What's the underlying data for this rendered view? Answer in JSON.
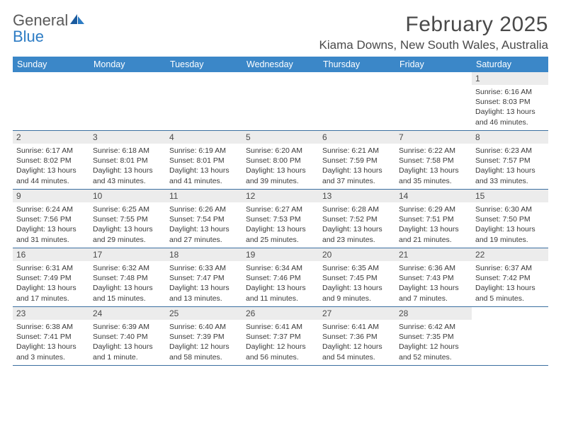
{
  "logo": {
    "text_gray": "General",
    "text_blue": "Blue"
  },
  "title": "February 2025",
  "location": "Kiama Downs, New South Wales, Australia",
  "colors": {
    "header_bg": "#3b87c8",
    "header_text": "#ffffff",
    "daynum_bg": "#ececec",
    "rule": "#3b6fa0",
    "body_text": "#3a3a3a",
    "title_text": "#4a4a4a"
  },
  "weekdays": [
    "Sunday",
    "Monday",
    "Tuesday",
    "Wednesday",
    "Thursday",
    "Friday",
    "Saturday"
  ],
  "weeks": [
    [
      null,
      null,
      null,
      null,
      null,
      null,
      {
        "n": "1",
        "sunrise": "6:16 AM",
        "sunset": "8:03 PM",
        "dl1": "Daylight: 13 hours",
        "dl2": "and 46 minutes."
      }
    ],
    [
      {
        "n": "2",
        "sunrise": "6:17 AM",
        "sunset": "8:02 PM",
        "dl1": "Daylight: 13 hours",
        "dl2": "and 44 minutes."
      },
      {
        "n": "3",
        "sunrise": "6:18 AM",
        "sunset": "8:01 PM",
        "dl1": "Daylight: 13 hours",
        "dl2": "and 43 minutes."
      },
      {
        "n": "4",
        "sunrise": "6:19 AM",
        "sunset": "8:01 PM",
        "dl1": "Daylight: 13 hours",
        "dl2": "and 41 minutes."
      },
      {
        "n": "5",
        "sunrise": "6:20 AM",
        "sunset": "8:00 PM",
        "dl1": "Daylight: 13 hours",
        "dl2": "and 39 minutes."
      },
      {
        "n": "6",
        "sunrise": "6:21 AM",
        "sunset": "7:59 PM",
        "dl1": "Daylight: 13 hours",
        "dl2": "and 37 minutes."
      },
      {
        "n": "7",
        "sunrise": "6:22 AM",
        "sunset": "7:58 PM",
        "dl1": "Daylight: 13 hours",
        "dl2": "and 35 minutes."
      },
      {
        "n": "8",
        "sunrise": "6:23 AM",
        "sunset": "7:57 PM",
        "dl1": "Daylight: 13 hours",
        "dl2": "and 33 minutes."
      }
    ],
    [
      {
        "n": "9",
        "sunrise": "6:24 AM",
        "sunset": "7:56 PM",
        "dl1": "Daylight: 13 hours",
        "dl2": "and 31 minutes."
      },
      {
        "n": "10",
        "sunrise": "6:25 AM",
        "sunset": "7:55 PM",
        "dl1": "Daylight: 13 hours",
        "dl2": "and 29 minutes."
      },
      {
        "n": "11",
        "sunrise": "6:26 AM",
        "sunset": "7:54 PM",
        "dl1": "Daylight: 13 hours",
        "dl2": "and 27 minutes."
      },
      {
        "n": "12",
        "sunrise": "6:27 AM",
        "sunset": "7:53 PM",
        "dl1": "Daylight: 13 hours",
        "dl2": "and 25 minutes."
      },
      {
        "n": "13",
        "sunrise": "6:28 AM",
        "sunset": "7:52 PM",
        "dl1": "Daylight: 13 hours",
        "dl2": "and 23 minutes."
      },
      {
        "n": "14",
        "sunrise": "6:29 AM",
        "sunset": "7:51 PM",
        "dl1": "Daylight: 13 hours",
        "dl2": "and 21 minutes."
      },
      {
        "n": "15",
        "sunrise": "6:30 AM",
        "sunset": "7:50 PM",
        "dl1": "Daylight: 13 hours",
        "dl2": "and 19 minutes."
      }
    ],
    [
      {
        "n": "16",
        "sunrise": "6:31 AM",
        "sunset": "7:49 PM",
        "dl1": "Daylight: 13 hours",
        "dl2": "and 17 minutes."
      },
      {
        "n": "17",
        "sunrise": "6:32 AM",
        "sunset": "7:48 PM",
        "dl1": "Daylight: 13 hours",
        "dl2": "and 15 minutes."
      },
      {
        "n": "18",
        "sunrise": "6:33 AM",
        "sunset": "7:47 PM",
        "dl1": "Daylight: 13 hours",
        "dl2": "and 13 minutes."
      },
      {
        "n": "19",
        "sunrise": "6:34 AM",
        "sunset": "7:46 PM",
        "dl1": "Daylight: 13 hours",
        "dl2": "and 11 minutes."
      },
      {
        "n": "20",
        "sunrise": "6:35 AM",
        "sunset": "7:45 PM",
        "dl1": "Daylight: 13 hours",
        "dl2": "and 9 minutes."
      },
      {
        "n": "21",
        "sunrise": "6:36 AM",
        "sunset": "7:43 PM",
        "dl1": "Daylight: 13 hours",
        "dl2": "and 7 minutes."
      },
      {
        "n": "22",
        "sunrise": "6:37 AM",
        "sunset": "7:42 PM",
        "dl1": "Daylight: 13 hours",
        "dl2": "and 5 minutes."
      }
    ],
    [
      {
        "n": "23",
        "sunrise": "6:38 AM",
        "sunset": "7:41 PM",
        "dl1": "Daylight: 13 hours",
        "dl2": "and 3 minutes."
      },
      {
        "n": "24",
        "sunrise": "6:39 AM",
        "sunset": "7:40 PM",
        "dl1": "Daylight: 13 hours",
        "dl2": "and 1 minute."
      },
      {
        "n": "25",
        "sunrise": "6:40 AM",
        "sunset": "7:39 PM",
        "dl1": "Daylight: 12 hours",
        "dl2": "and 58 minutes."
      },
      {
        "n": "26",
        "sunrise": "6:41 AM",
        "sunset": "7:37 PM",
        "dl1": "Daylight: 12 hours",
        "dl2": "and 56 minutes."
      },
      {
        "n": "27",
        "sunrise": "6:41 AM",
        "sunset": "7:36 PM",
        "dl1": "Daylight: 12 hours",
        "dl2": "and 54 minutes."
      },
      {
        "n": "28",
        "sunrise": "6:42 AM",
        "sunset": "7:35 PM",
        "dl1": "Daylight: 12 hours",
        "dl2": "and 52 minutes."
      },
      null
    ]
  ]
}
